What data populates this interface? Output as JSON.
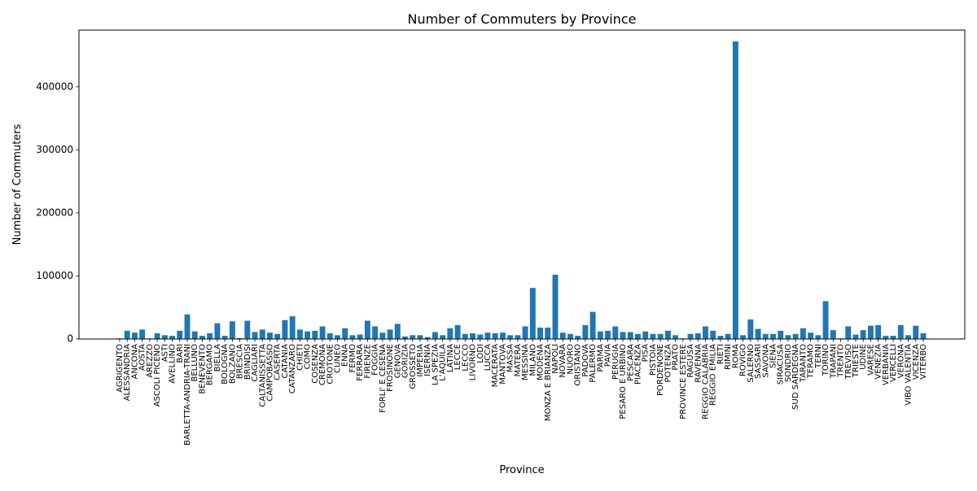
{
  "chart_data": {
    "type": "bar",
    "title": "Number of Commuters by Province",
    "xlabel": "Province",
    "ylabel": "Number of Commuters",
    "ylim": [
      0,
      490000
    ],
    "yticks": [
      0,
      100000,
      200000,
      300000,
      400000
    ],
    "grid": false,
    "color": "#1f77b4",
    "categories": [
      "AGRIGENTO",
      "ALESSANDRIA",
      "ANCONA",
      "AOSTA",
      "AREZZO",
      "ASCOLI PICENO",
      "ASTI",
      "AVELLINO",
      "BARI",
      "BARLETTA-ANDRIA-TRANI",
      "BELLUNO",
      "BENEVENTO",
      "BERGAMO",
      "BIELLA",
      "BOLOGNA",
      "BOLZANO",
      "BRESCIA",
      "BRINDISI",
      "CAGLIARI",
      "CALTANISSETTA",
      "CAMPOBASSO",
      "CASERTA",
      "CATANIA",
      "CATANZARO",
      "CHIETI",
      "COMO",
      "COSENZA",
      "CREMONA",
      "CROTONE",
      "CUNEO",
      "ENNA",
      "FERMO",
      "FERRARA",
      "FIRENZE",
      "FOGGIA",
      "FORLI' E CESENA",
      "FROSINONE",
      "GENOVA",
      "GORIZIA",
      "GROSSETO",
      "IMPERIA",
      "ISERNIA",
      "LA SPEZIA",
      "L'AQUILA",
      "LATINA",
      "LECCE",
      "LECCO",
      "LIVORNO",
      "LODI",
      "LUCCA",
      "MACERATA",
      "MANTOVA",
      "MASSA",
      "MATERA",
      "MESSINA",
      "MILANO",
      "MODENA",
      "MONZA E BRIANZA",
      "NAPOLI",
      "NOVARA",
      "NUORO",
      "ORISTANO",
      "PADOVA",
      "PALERMO",
      "PARMA",
      "PAVIA",
      "PERUGIA",
      "PESARO E URBINO",
      "PESCARA",
      "PIACENZA",
      "PISA",
      "PISTOIA",
      "PORDENONE",
      "POTENZA",
      "PRATO",
      "PROVINCE ESTERE",
      "RAGUSA",
      "RAVENNA",
      "REGGIO CALABRIA",
      "REGGIO EMILIA",
      "RIETI",
      "RIMINI",
      "ROMA",
      "ROVIGO",
      "SALERNO",
      "SASSARI",
      "SAVONA",
      "SIENA",
      "SIRACUSA",
      "SONDRIO",
      "SUD SARDEGNA",
      "TARANTO",
      "TERAMO",
      "TERNI",
      "TORINO",
      "TRAPANI",
      "TRENTO",
      "TREVISO",
      "TRIESTE",
      "UDINE",
      "VARESE",
      "VENEZIA",
      "VERBANIA",
      "VERCELLI",
      "VERONA",
      "VIBO VALENTIA",
      "VICENZA",
      "VITERBO"
    ],
    "values": [
      1000,
      13000,
      10000,
      15000,
      1000,
      9000,
      6000,
      5000,
      13000,
      39000,
      12000,
      5000,
      9000,
      25000,
      5000,
      28000,
      1500,
      29000,
      11000,
      15000,
      10000,
      8000,
      30000,
      36000,
      15000,
      12000,
      13000,
      20000,
      9000,
      6000,
      17000,
      6000,
      7000,
      29000,
      20000,
      10000,
      15000,
      24000,
      4000,
      6000,
      6000,
      3000,
      11000,
      6000,
      17000,
      22000,
      8000,
      9000,
      7000,
      10000,
      9000,
      10000,
      6000,
      6000,
      20000,
      81000,
      18000,
      18000,
      102000,
      10000,
      8000,
      5000,
      22000,
      43000,
      12000,
      13000,
      20000,
      11000,
      11000,
      8000,
      12000,
      8000,
      8000,
      13000,
      6000,
      1000,
      8000,
      9000,
      20000,
      13000,
      5000,
      8000,
      472000,
      6000,
      31000,
      16000,
      8000,
      8000,
      13000,
      6000,
      8000,
      17000,
      10000,
      6000,
      60000,
      14000,
      1000,
      20000,
      7000,
      14000,
      21000,
      22000,
      5000,
      5000,
      22000,
      6000,
      21000,
      9000
    ]
  }
}
